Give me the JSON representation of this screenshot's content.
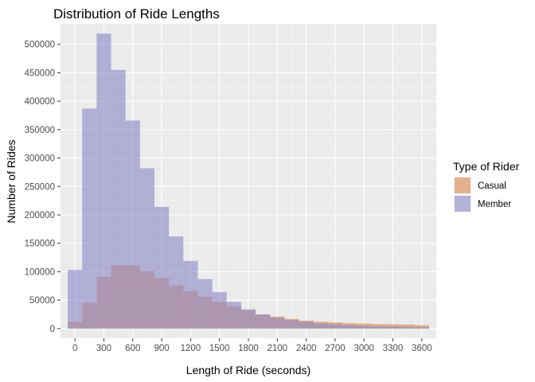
{
  "chart_data": {
    "type": "histogram",
    "title": "Distribution of Ride Lengths",
    "xlabel": "Length of Ride (seconds)",
    "ylabel": "Number of Rides",
    "bin_width": 150,
    "x_bin_centers": [
      0,
      150,
      300,
      450,
      600,
      750,
      900,
      1050,
      1200,
      1350,
      1500,
      1650,
      1800,
      1950,
      2100,
      2250,
      2400,
      2550,
      2700,
      2850,
      3000,
      3150,
      3300,
      3450,
      3600
    ],
    "xlim": [
      -150,
      3750
    ],
    "ylim": [
      -17000,
      536000
    ],
    "x_ticks": [
      0,
      300,
      600,
      900,
      1200,
      1500,
      1800,
      2100,
      2400,
      2700,
      3000,
      3300,
      3600
    ],
    "x_tick_labels": [
      "0",
      "300",
      "600",
      "900",
      "1200",
      "1500",
      "1800",
      "2100",
      "2400",
      "2700",
      "3000",
      "3300",
      "3600"
    ],
    "y_ticks": [
      0,
      50000,
      100000,
      150000,
      200000,
      250000,
      300000,
      350000,
      400000,
      450000,
      500000
    ],
    "y_tick_labels": [
      "0",
      "50000",
      "100000",
      "150000",
      "200000",
      "250000",
      "300000",
      "350000",
      "400000",
      "450000",
      "500000"
    ],
    "grid": true,
    "legend": {
      "title": "Type of Rider",
      "position": "right",
      "entries": [
        "Casual",
        "Member"
      ]
    },
    "series": [
      {
        "name": "Casual",
        "color": "#d8854a",
        "values": [
          12000,
          45000,
          91000,
          111000,
          111000,
          101000,
          89000,
          76000,
          66000,
          56000,
          47000,
          39000,
          32000,
          25000,
          21000,
          17000,
          14000,
          12000,
          11000,
          9500,
          8800,
          8000,
          7500,
          7000,
          6000
        ]
      },
      {
        "name": "Member",
        "color": "#8a86c8",
        "values": [
          103000,
          387000,
          519000,
          455000,
          366000,
          282000,
          214000,
          162000,
          119000,
          87000,
          64000,
          47000,
          34000,
          25000,
          19000,
          15000,
          12000,
          9000,
          7500,
          6000,
          5000,
          4000,
          3500,
          3000,
          2500
        ]
      }
    ]
  }
}
